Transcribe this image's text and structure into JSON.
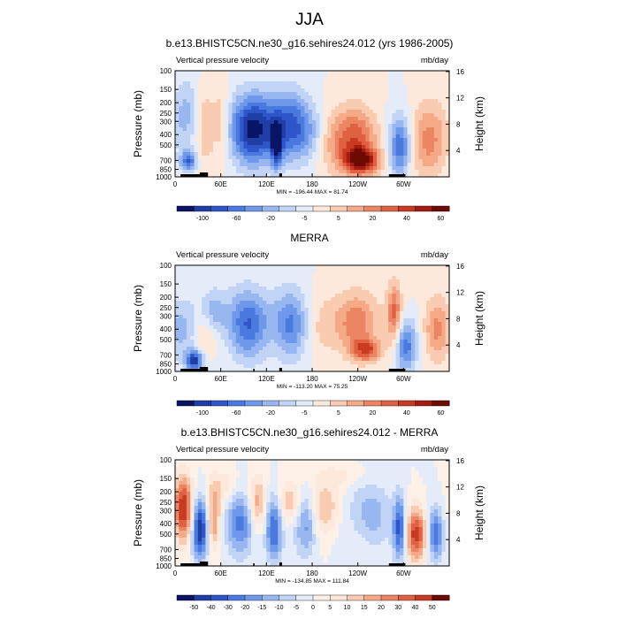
{
  "page": {
    "title": "JJA"
  },
  "chart_data": [
    {
      "type": "heatmap",
      "title": "b.e13.BHISTC5CN.ne30_g16.sehires24.012 (yrs 1986-2005)",
      "variable": "Vertical pressure velocity",
      "units": "mb/day",
      "xlabel": "",
      "ylabel": "Pressure (mb)",
      "ylabel_right": "Height (km)",
      "x_ticks": [
        "0",
        "60E",
        "120E",
        "180",
        "120W",
        "60W"
      ],
      "y_ticks": [
        "100",
        "150",
        "200",
        "250",
        "300",
        "400",
        "500",
        "700",
        "850",
        "1000"
      ],
      "y_ticks_right": [
        "4",
        "8",
        "12",
        "16"
      ],
      "stats": "MIN = -196.44  MAX = 81.74",
      "colorbar_labels": [
        "-100",
        "-60",
        "-20",
        "-5",
        "5",
        "20",
        "40",
        "60"
      ],
      "colorbar_colors": [
        "#0a1464",
        "#1f3ea8",
        "#2f56c8",
        "#4a7ae0",
        "#6e98ea",
        "#98b6f0",
        "#c2d4f6",
        "#e4ecfa",
        "#fde9dc",
        "#f9cbb0",
        "#f5a987",
        "#ec8563",
        "#e06042",
        "#c93a23",
        "#a51b10",
        "#6e0a04"
      ],
      "min": -196.44,
      "max": 81.74
    },
    {
      "type": "heatmap",
      "title": "MERRA",
      "variable": "Vertical pressure velocity",
      "units": "mb/day",
      "xlabel": "",
      "ylabel": "Pressure (mb)",
      "ylabel_right": "Height (km)",
      "x_ticks": [
        "0",
        "60E",
        "120E",
        "180",
        "120W",
        "60W"
      ],
      "y_ticks": [
        "100",
        "150",
        "200",
        "250",
        "300",
        "400",
        "500",
        "700",
        "850",
        "1000"
      ],
      "y_ticks_right": [
        "4",
        "8",
        "12",
        "16"
      ],
      "stats": "MIN = -113.20  MAX = 75.25",
      "colorbar_labels": [
        "-100",
        "-60",
        "-20",
        "-5",
        "5",
        "20",
        "40",
        "60"
      ],
      "colorbar_colors": [
        "#0a1464",
        "#1f3ea8",
        "#2f56c8",
        "#4a7ae0",
        "#6e98ea",
        "#98b6f0",
        "#c2d4f6",
        "#e4ecfa",
        "#fde9dc",
        "#f9cbb0",
        "#f5a987",
        "#ec8563",
        "#e06042",
        "#c93a23",
        "#a51b10",
        "#6e0a04"
      ],
      "min": -113.2,
      "max": 75.25
    },
    {
      "type": "heatmap",
      "title": "b.e13.BHISTC5CN.ne30_g16.sehires24.012 - MERRA",
      "variable": "Vertical pressure velocity",
      "units": "mb/day",
      "xlabel": "",
      "ylabel": "Pressure (mb)",
      "ylabel_right": "Height (km)",
      "x_ticks": [
        "0",
        "60E",
        "120E",
        "180",
        "120W",
        "60W"
      ],
      "y_ticks": [
        "100",
        "150",
        "200",
        "250",
        "300",
        "400",
        "500",
        "700",
        "850",
        "1000"
      ],
      "y_ticks_right": [
        "4",
        "8",
        "12",
        "16"
      ],
      "stats": "MIN = -134.85  MAX = 111.84",
      "colorbar_labels": [
        "-50",
        "-40",
        "-30",
        "-20",
        "-15",
        "-10",
        "-5",
        "0",
        "5",
        "10",
        "15",
        "20",
        "30",
        "40",
        "50"
      ],
      "colorbar_colors": [
        "#0a1464",
        "#1f3ea8",
        "#2f56c8",
        "#4a7ae0",
        "#6e98ea",
        "#98b6f0",
        "#c2d4f6",
        "#e4ecfa",
        "#fdf0e6",
        "#fde9dc",
        "#f9cbb0",
        "#f5a987",
        "#ec8563",
        "#e06042",
        "#c93a23",
        "#6e0a04"
      ],
      "min": -134.85,
      "max": 111.84
    }
  ]
}
